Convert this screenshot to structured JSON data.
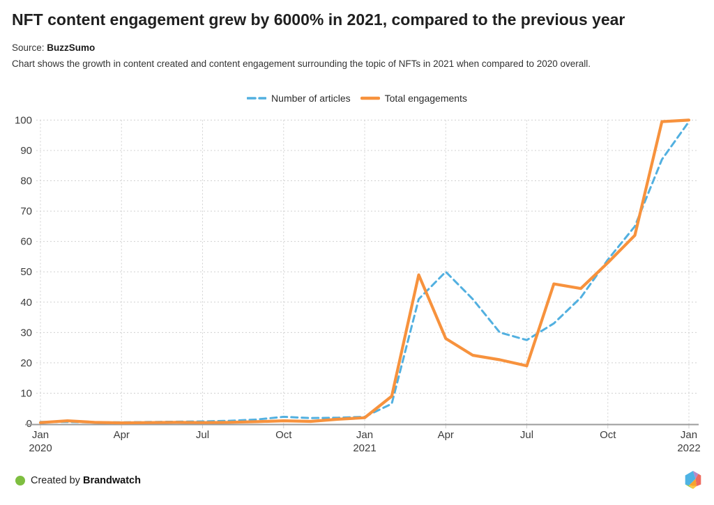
{
  "header": {
    "title": "NFT content engagement grew by 6000% in 2021, compared to the previous year",
    "source_label": "Source:",
    "source_value": "BuzzSumo",
    "description": "Chart shows the growth in content created and content engagement surrounding the topic of NFTs in 2021 when compared to 2020 overall."
  },
  "chart_data": {
    "type": "line",
    "title": "NFT content engagement grew by 6000% in 2021, compared to the previous year",
    "x": [
      "Jan 2020",
      "Feb 2020",
      "Mar 2020",
      "Apr 2020",
      "May 2020",
      "Jun 2020",
      "Jul 2020",
      "Aug 2020",
      "Sep 2020",
      "Oct 2020",
      "Nov 2020",
      "Dec 2020",
      "Jan 2021",
      "Feb 2021",
      "Mar 2021",
      "Apr 2021",
      "May 2021",
      "Jun 2021",
      "Jul 2021",
      "Aug 2021",
      "Sep 2021",
      "Oct 2021",
      "Nov 2021",
      "Dec 2021",
      "Jan 2022"
    ],
    "series": [
      {
        "name": "Number of articles",
        "color": "#52b0e0",
        "style": "dashed",
        "values": [
          0.5,
          0.5,
          0.4,
          0.4,
          0.5,
          0.6,
          0.7,
          0.9,
          1.3,
          2.2,
          1.8,
          1.9,
          2.2,
          6.5,
          41,
          50,
          41,
          30,
          27.5,
          33,
          41.5,
          54,
          65,
          87,
          99.5
        ]
      },
      {
        "name": "Total engagements",
        "color": "#f7923d",
        "style": "solid",
        "values": [
          0.3,
          0.9,
          0.4,
          0.2,
          0.3,
          0.4,
          0.3,
          0.4,
          0.6,
          0.9,
          0.7,
          1.4,
          1.9,
          9,
          49,
          28,
          22.5,
          21,
          19,
          46,
          44.5,
          53,
          62,
          99.5,
          100
        ]
      }
    ],
    "x_ticks": [
      {
        "index": 0,
        "label": "Jan",
        "year": "2020"
      },
      {
        "index": 3,
        "label": "Apr"
      },
      {
        "index": 6,
        "label": "Jul"
      },
      {
        "index": 9,
        "label": "Oct"
      },
      {
        "index": 12,
        "label": "Jan",
        "year": "2021"
      },
      {
        "index": 15,
        "label": "Apr"
      },
      {
        "index": 18,
        "label": "Jul"
      },
      {
        "index": 21,
        "label": "Oct"
      },
      {
        "index": 24,
        "label": "Jan",
        "year": "2022"
      }
    ],
    "y_ticks": [
      0,
      10,
      20,
      30,
      40,
      50,
      60,
      70,
      80,
      90,
      100
    ],
    "ylim": [
      0,
      100
    ],
    "grid": true,
    "grid_color": "#d0d0d0",
    "axis_color": "#9b9b9b",
    "tick_label_color": "#3c3c3c",
    "legend_position": "top-center"
  },
  "footer": {
    "created_by": "Created by ",
    "brand": "Brandwatch",
    "dot_color": "#7ebe40",
    "logo": "brandwatch-hexagon-logo",
    "logo_colors": {
      "blue": "#4eb3e4",
      "purple": "#b58bc9",
      "salmon": "#ef6a5e",
      "orange": "#f7a32d",
      "yellow": "#fdc741",
      "green": "#8bc540"
    }
  }
}
